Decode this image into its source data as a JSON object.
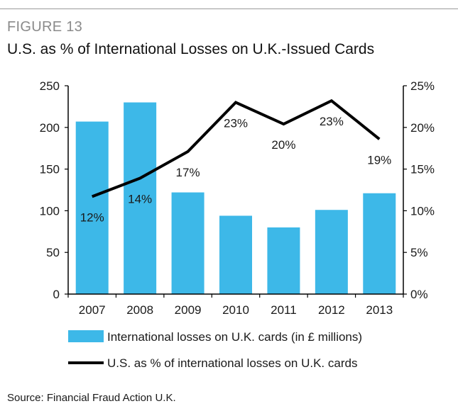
{
  "figure_label": "FIGURE 13",
  "title": "U.S. as % of International Losses on U.K.-Issued Cards",
  "source": "Source: Financial Fraud Action U.K.",
  "colors": {
    "bar": "#3db8e8",
    "line": "#000000",
    "axis": "#000000"
  },
  "chart_data": {
    "type": "bar",
    "categories": [
      "2007",
      "2008",
      "2009",
      "2010",
      "2011",
      "2012",
      "2013"
    ],
    "series": [
      {
        "name": "International losses on U.K. cards (in £ millions)",
        "type": "bar",
        "axis": "left",
        "values": [
          207,
          230,
          122,
          94,
          80,
          101,
          121
        ]
      },
      {
        "name": "U.S. as % of international losses on U.K. cards",
        "type": "line",
        "axis": "right",
        "values": [
          11.7,
          13.9,
          17.1,
          23.0,
          20.4,
          23.2,
          18.6
        ],
        "labels": [
          "12%",
          "14%",
          "17%",
          "23%",
          "20%",
          "23%",
          "19%"
        ]
      }
    ],
    "left_axis": {
      "min": 0,
      "max": 250,
      "ticks": [
        "0",
        "50",
        "100",
        "150",
        "200",
        "250"
      ]
    },
    "right_axis": {
      "min": 0,
      "max": 25,
      "ticks": [
        "0%",
        "5%",
        "10%",
        "15%",
        "20%",
        "25%"
      ]
    },
    "grid": false,
    "legend_position": "bottom"
  }
}
